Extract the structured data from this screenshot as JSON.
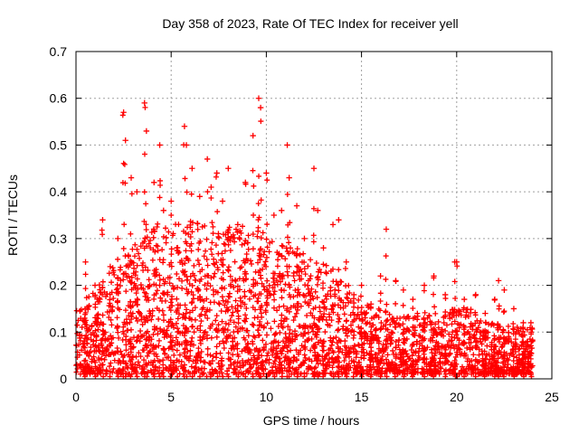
{
  "chart_data": {
    "type": "scatter",
    "title": "Day 358 of 2023, Rate Of TEC Index for receiver yell",
    "xlabel": "GPS time / hours",
    "ylabel": "ROTI / TECUs",
    "xlim": [
      0,
      25
    ],
    "ylim": [
      0,
      0.7
    ],
    "xticks": [
      0,
      5,
      10,
      15,
      20,
      25
    ],
    "xtick_labels": [
      "0",
      "5",
      "10",
      "15",
      "20",
      "25"
    ],
    "yticks": [
      0,
      0.1,
      0.2,
      0.3,
      0.4,
      0.5,
      0.6,
      0.7
    ],
    "ytick_labels": [
      "0",
      "0.1",
      "0.2",
      "0.3",
      "0.4",
      "0.5",
      "0.6",
      "0.7"
    ],
    "grid": true,
    "marker": "plus",
    "color": "#ff0000",
    "data_extent_hours": [
      0,
      24
    ],
    "series": [
      {
        "name": "ROTI",
        "x": [
          0.5,
          1.0,
          1.4,
          1.8,
          2.2,
          2.5,
          2.6,
          2.9,
          3.2,
          3.6,
          3.7,
          4.1,
          4.4,
          4.6,
          5.0,
          5.3,
          5.7,
          5.8,
          6.1,
          6.5,
          6.9,
          7.1,
          7.4,
          7.7,
          8.0,
          8.5,
          8.9,
          9.3,
          9.6,
          9.7,
          10.0,
          10.4,
          10.8,
          11.1,
          11.2,
          11.6,
          12.0,
          12.5,
          12.7,
          13.0,
          13.5,
          13.8,
          14.2,
          14.6,
          15.0,
          15.5,
          16.0,
          16.3,
          16.8,
          17.2,
          17.7,
          18.3,
          18.8,
          19.4,
          19.9,
          20.0,
          20.4,
          21.0,
          21.5,
          22.0,
          22.2,
          22.5,
          23.0,
          23.5,
          23.9
        ],
        "y": [
          0.25,
          0.2,
          0.34,
          0.24,
          0.3,
          0.57,
          0.51,
          0.43,
          0.4,
          0.59,
          0.53,
          0.42,
          0.5,
          0.36,
          0.38,
          0.28,
          0.54,
          0.5,
          0.45,
          0.39,
          0.47,
          0.41,
          0.44,
          0.38,
          0.45,
          0.33,
          0.42,
          0.52,
          0.6,
          0.58,
          0.44,
          0.35,
          0.36,
          0.5,
          0.43,
          0.37,
          0.3,
          0.45,
          0.36,
          0.28,
          0.33,
          0.34,
          0.25,
          0.18,
          0.2,
          0.16,
          0.22,
          0.32,
          0.21,
          0.19,
          0.17,
          0.2,
          0.22,
          0.18,
          0.25,
          0.25,
          0.17,
          0.18,
          0.14,
          0.17,
          0.21,
          0.19,
          0.15,
          0.12,
          0.12
        ]
      }
    ]
  }
}
